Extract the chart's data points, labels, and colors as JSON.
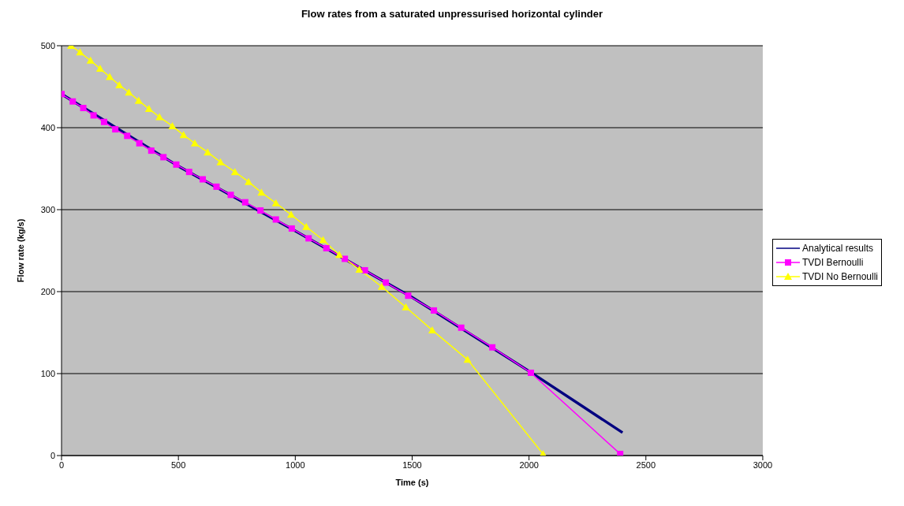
{
  "chart_data": {
    "type": "line",
    "title": "Flow rates from a saturated unpressurised horizontal cylinder",
    "xlabel": "Time (s)",
    "ylabel": "Flow rate (kg/s)",
    "xlim": [
      0,
      3000
    ],
    "xticks": [
      0,
      500,
      1000,
      1500,
      2000,
      2500,
      3000
    ],
    "ylim": [
      0,
      500
    ],
    "yticks": [
      0,
      100,
      200,
      300,
      400,
      500
    ],
    "grid": "y",
    "legend": "right",
    "series": [
      {
        "name": "Analytical results",
        "color": "#000080",
        "marker": "none",
        "x": [
          0,
          500,
          1000,
          1500,
          2000,
          2400
        ],
        "values": [
          441,
          353,
          274,
          193,
          103,
          28
        ]
      },
      {
        "name": "TVDI Bernoulli",
        "color": "#ff00ff",
        "marker": "square",
        "x": [
          0,
          48,
          93,
          137,
          182,
          230,
          281,
          333,
          384,
          436,
          491,
          546,
          604,
          663,
          724,
          786,
          851,
          917,
          985,
          1057,
          1133,
          1212,
          1298,
          1387,
          1483,
          1593,
          1710,
          1843,
          2008,
          2390
        ],
        "values": [
          441,
          432,
          424,
          415,
          407,
          398,
          390,
          381,
          372,
          364,
          355,
          346,
          337,
          328,
          318,
          309,
          299,
          288,
          277,
          265,
          253,
          240,
          226,
          211,
          195,
          177,
          156,
          132,
          101,
          2
        ]
      },
      {
        "name": "TVDI No Bernoulli",
        "color": "#ffff00",
        "marker": "triangle",
        "x": [
          41,
          79,
          124,
          165,
          206,
          247,
          288,
          330,
          374,
          419,
          474,
          522,
          570,
          625,
          680,
          742,
          800,
          855,
          917,
          982,
          1047,
          1119,
          1188,
          1274,
          1370,
          1473,
          1586,
          1737,
          2060
        ],
        "values": [
          500,
          492,
          482,
          472,
          462,
          452,
          443,
          433,
          423,
          413,
          402,
          391,
          381,
          370,
          358,
          346,
          334,
          321,
          308,
          294,
          279,
          263,
          245,
          227,
          206,
          181,
          153,
          117,
          2
        ]
      }
    ]
  }
}
